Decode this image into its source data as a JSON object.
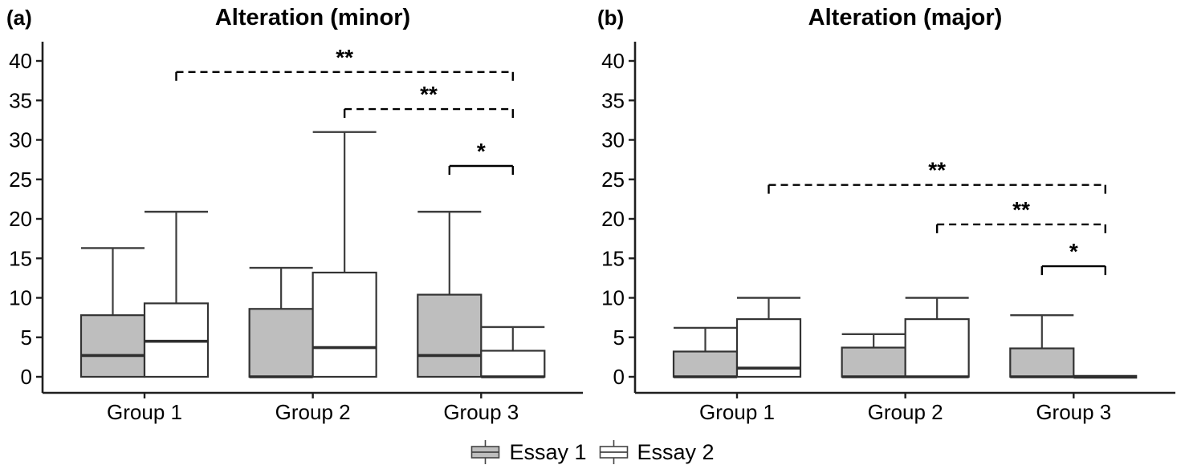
{
  "figure": {
    "background": "#ffffff",
    "legend": {
      "items": [
        {
          "label": "Essay 1",
          "fill": "#bebebe"
        },
        {
          "label": "Essay 2",
          "fill": "#ffffff"
        }
      ]
    }
  },
  "colors": {
    "essay1_fill": "#bebebe",
    "essay2_fill": "#ffffff",
    "box_border": "#333333",
    "median_line": "#2e2e2e",
    "whisker": "#3d3d3d",
    "axis": "#1f1f1f",
    "bracket": "#000000",
    "text": "#000000"
  },
  "chart_data": [
    {
      "type": "boxplot",
      "panel_label": "(a)",
      "title": "Alteration (minor)",
      "categories": [
        "Group 1",
        "Group 2",
        "Group 3"
      ],
      "ylim": [
        0,
        40
      ],
      "yticks": [
        0,
        5,
        10,
        15,
        20,
        25,
        30,
        35,
        40
      ],
      "grid": false,
      "legend_position": "bottom-center",
      "series": [
        {
          "name": "Essay 1",
          "fill": "#bebebe",
          "boxes": [
            {
              "group": "Group 1",
              "q1": 0,
              "median": 2.7,
              "q3": 7.8,
              "whisker_low": 0,
              "whisker_high": 16.3
            },
            {
              "group": "Group 2",
              "q1": 0,
              "median": 0,
              "q3": 8.6,
              "whisker_low": 0,
              "whisker_high": 13.8
            },
            {
              "group": "Group 3",
              "q1": 0,
              "median": 2.7,
              "q3": 10.4,
              "whisker_low": 0,
              "whisker_high": 20.9
            }
          ]
        },
        {
          "name": "Essay 2",
          "fill": "#ffffff",
          "boxes": [
            {
              "group": "Group 1",
              "q1": 0,
              "median": 4.5,
              "q3": 9.3,
              "whisker_low": 0,
              "whisker_high": 20.9
            },
            {
              "group": "Group 2",
              "q1": 0,
              "median": 3.7,
              "q3": 13.2,
              "whisker_low": 0,
              "whisker_high": 31.0
            },
            {
              "group": "Group 3",
              "q1": 0,
              "median": 0,
              "q3": 3.3,
              "whisker_low": 0,
              "whisker_high": 6.3
            }
          ]
        }
      ],
      "significance_brackets": [
        {
          "from": {
            "group": "Group 1",
            "series": "Essay 2"
          },
          "to": {
            "group": "Group 3",
            "series": "Essay 2"
          },
          "level": 38.6,
          "label": "**",
          "line_style": "dashed"
        },
        {
          "from": {
            "group": "Group 2",
            "series": "Essay 2"
          },
          "to": {
            "group": "Group 3",
            "series": "Essay 2"
          },
          "level": 33.9,
          "label": "**",
          "line_style": "dashed"
        },
        {
          "from": {
            "group": "Group 3",
            "series": "Essay 1"
          },
          "to": {
            "group": "Group 3",
            "series": "Essay 2"
          },
          "level": 26.7,
          "label": "*",
          "line_style": "solid"
        }
      ]
    },
    {
      "type": "boxplot",
      "panel_label": "(b)",
      "title": "Alteration (major)",
      "categories": [
        "Group 1",
        "Group 2",
        "Group 3"
      ],
      "ylim": [
        0,
        40
      ],
      "yticks": [
        0,
        5,
        10,
        15,
        20,
        25,
        30,
        35,
        40
      ],
      "grid": false,
      "legend_position": "bottom-center",
      "series": [
        {
          "name": "Essay 1",
          "fill": "#bebebe",
          "boxes": [
            {
              "group": "Group 1",
              "q1": 0,
              "median": 0,
              "q3": 3.2,
              "whisker_low": 0,
              "whisker_high": 6.2
            },
            {
              "group": "Group 2",
              "q1": 0,
              "median": 0,
              "q3": 3.7,
              "whisker_low": 0,
              "whisker_high": 5.4
            },
            {
              "group": "Group 3",
              "q1": 0,
              "median": 0,
              "q3": 3.6,
              "whisker_low": 0,
              "whisker_high": 7.8
            }
          ]
        },
        {
          "name": "Essay 2",
          "fill": "#ffffff",
          "boxes": [
            {
              "group": "Group 1",
              "q1": 0,
              "median": 1.1,
              "q3": 7.3,
              "whisker_low": 0,
              "whisker_high": 10.0
            },
            {
              "group": "Group 2",
              "q1": 0,
              "median": 0,
              "q3": 7.3,
              "whisker_low": 0,
              "whisker_high": 10.0
            },
            {
              "group": "Group 3",
              "q1": 0,
              "median": 0,
              "q3": 0,
              "whisker_low": 0,
              "whisker_high": 0
            }
          ]
        }
      ],
      "significance_brackets": [
        {
          "from": {
            "group": "Group 1",
            "series": "Essay 2"
          },
          "to": {
            "group": "Group 3",
            "series": "Essay 2"
          },
          "level": 24.3,
          "label": "**",
          "line_style": "dashed"
        },
        {
          "from": {
            "group": "Group 2",
            "series": "Essay 2"
          },
          "to": {
            "group": "Group 3",
            "series": "Essay 2"
          },
          "level": 19.3,
          "label": "**",
          "line_style": "dashed"
        },
        {
          "from": {
            "group": "Group 3",
            "series": "Essay 1"
          },
          "to": {
            "group": "Group 3",
            "series": "Essay 2"
          },
          "level": 14.0,
          "label": "*",
          "line_style": "solid"
        }
      ]
    }
  ]
}
